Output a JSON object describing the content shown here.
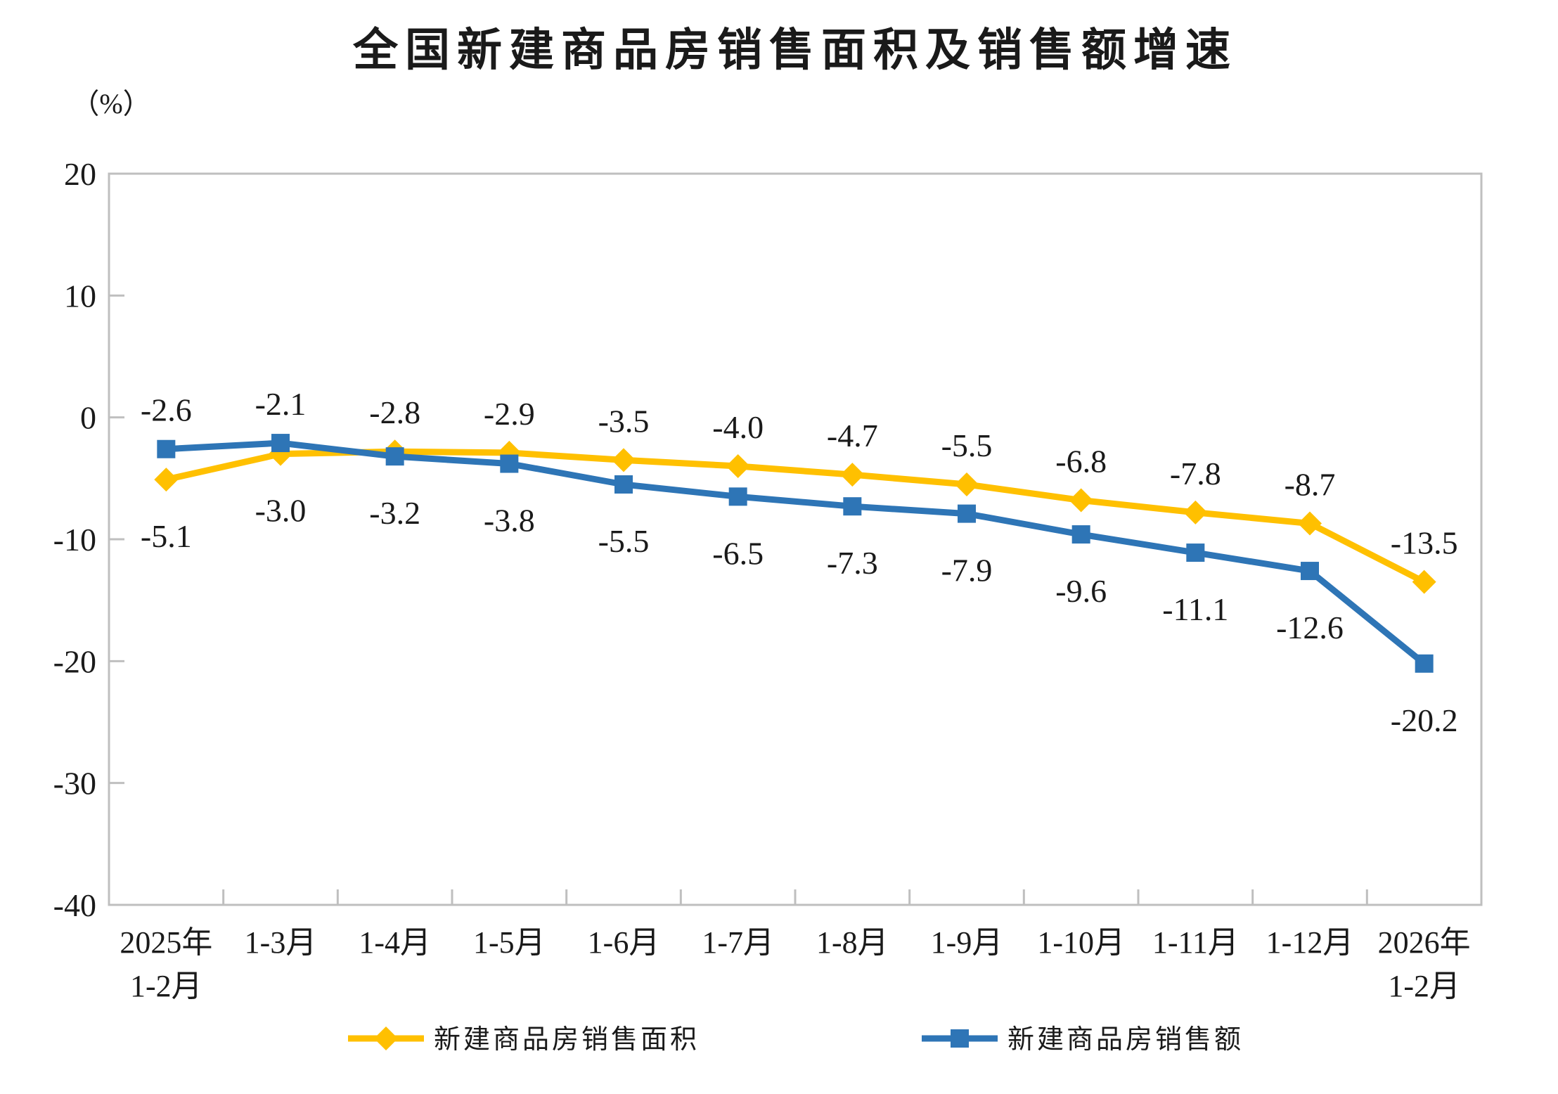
{
  "title": "全国新建商品房销售面积及销售额增速",
  "unit_label": "（%）",
  "chart_data": {
    "type": "line",
    "categories": [
      "2025年\n1-2月",
      "1-3月",
      "1-4月",
      "1-5月",
      "1-6月",
      "1-7月",
      "1-8月",
      "1-9月",
      "1-10月",
      "1-11月",
      "1-12月",
      "2026年\n1-2月"
    ],
    "series": [
      {
        "key": "sales-area",
        "name": "新建商品房销售面积",
        "color": "#FFC000",
        "marker": "diamond",
        "values": [
          -5.1,
          -3.0,
          -2.8,
          -2.9,
          -3.5,
          -4.0,
          -4.7,
          -5.5,
          -6.8,
          -7.8,
          -8.7,
          -13.5
        ]
      },
      {
        "key": "sales-value",
        "name": "新建商品房销售额",
        "color": "#2E75B6",
        "marker": "square",
        "values": [
          -2.6,
          -2.1,
          -3.2,
          -3.8,
          -5.5,
          -6.5,
          -7.3,
          -7.9,
          -9.6,
          -11.1,
          -12.6,
          -20.2
        ]
      }
    ],
    "title": "全国新建商品房销售面积及销售额增速",
    "xlabel": "",
    "ylabel": "（%）",
    "ylim": [
      -40,
      20
    ],
    "yticks": [
      20,
      10,
      0,
      -10,
      -20,
      -30,
      -40
    ],
    "grid": false,
    "legend_position": "bottom",
    "axis_color": "#BFBFBF",
    "label_color": "#1A1A1A"
  }
}
